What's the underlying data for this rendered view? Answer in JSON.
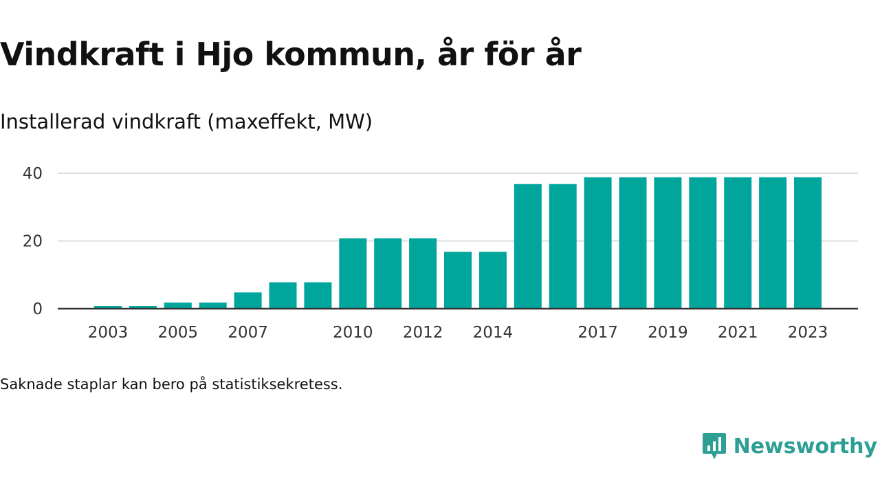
{
  "title": "Vindkraft i Hjo kommun, år för år",
  "subtitle": "Installerad vindkraft (maxeffekt, MW)",
  "note": "Saknade staplar kan bero på statistiksekretess.",
  "logo": {
    "text": "Newsworthy",
    "icon": "newsworthy-chart-bubble-icon"
  },
  "colors": {
    "bar": "#00a69c",
    "grid": "#dddddd",
    "axis": "#333333",
    "logo": "#2e9f95"
  },
  "chart_data": {
    "type": "bar",
    "title": "Vindkraft i Hjo kommun, år för år",
    "subtitle": "Installerad vindkraft (maxeffekt, MW)",
    "categories": [
      "2003",
      "2004",
      "2005",
      "2006",
      "2007",
      "2008",
      "2009",
      "2010",
      "2011",
      "2012",
      "2013",
      "2014",
      "2015",
      "2016",
      "2017",
      "2018",
      "2019",
      "2020",
      "2021",
      "2022",
      "2023"
    ],
    "values": [
      0.8,
      0.8,
      1.8,
      1.8,
      4.8,
      7.8,
      7.8,
      20.8,
      20.8,
      20.8,
      16.8,
      16.8,
      36.8,
      36.8,
      38.8,
      38.8,
      38.8,
      38.8,
      38.8,
      38.8,
      38.8
    ],
    "x_tick_labels": [
      "2003",
      "2005",
      "2007",
      "2010",
      "2012",
      "2014",
      "2017",
      "2019",
      "2021",
      "2023"
    ],
    "y_ticks": [
      0,
      20,
      40
    ],
    "ylim": [
      0,
      40
    ],
    "xlabel": "",
    "ylabel": "",
    "grid": true
  }
}
